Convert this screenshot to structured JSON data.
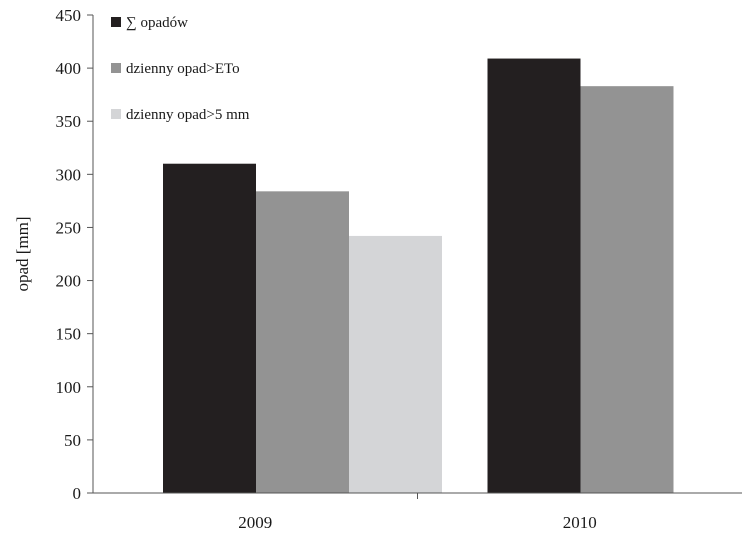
{
  "chart_data": {
    "type": "bar",
    "title": "",
    "xlabel": "",
    "ylabel": "opad [mm]",
    "ylim": [
      0,
      450
    ],
    "yticks": [
      0,
      50,
      100,
      150,
      200,
      250,
      300,
      350,
      400,
      450
    ],
    "grid": false,
    "legend_position": "top-left",
    "categories": [
      "2009",
      "2010"
    ],
    "series": [
      {
        "name": "∑ opadów",
        "color": "#231f20",
        "values": [
          310,
          409
        ]
      },
      {
        "name": "dzienny opad>ETo",
        "color": "#939393",
        "values": [
          284,
          383
        ]
      },
      {
        "name": "dzienny opad>5 mm",
        "color": "#d4d5d7",
        "values": [
          242,
          null
        ]
      }
    ]
  }
}
